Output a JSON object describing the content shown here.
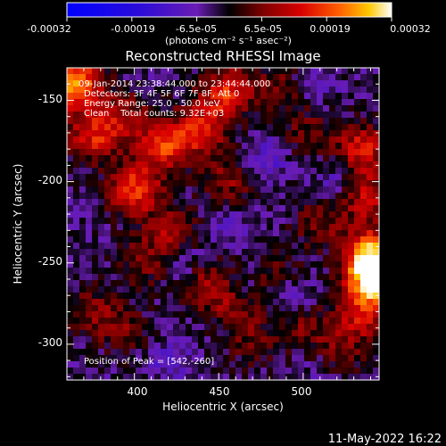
{
  "chart_data": {
    "type": "heatmap",
    "title": "Reconstructed RHESSI Image",
    "xlabel": "Heliocentric X (arcsec)",
    "ylabel": "Heliocentric Y (arcsec)",
    "xlim": [
      360,
      545
    ],
    "ylim": [
      -322,
      -130
    ],
    "x_ticks": [
      400,
      450,
      500
    ],
    "y_ticks": [
      -150,
      -200,
      -250,
      -300
    ],
    "colorbar": {
      "ticks": [
        "-0.00032",
        "-0.00019",
        "-6.5e-05",
        "6.5e-05",
        "0.00019",
        "0.00032"
      ],
      "unit_label": "(photons cm⁻² s⁻¹ asec⁻²)",
      "range": [
        -0.00032,
        0.00032
      ]
    },
    "annotations": {
      "time_range": "09-Jan-2014 23:38:44.000 to 23:44:44.000",
      "detectors": "Detectors: 3F 4F 5F 6F 7F 8F, Att 0",
      "energy": "Energy Range: 25.0 - 50.0 keV",
      "clean": "Clean    Total counts: 9.32E+03",
      "peak": "Position of Peak = [542,-260]"
    },
    "hot_spots": [
      {
        "x": 365,
        "y": -140,
        "v": 0.00028
      },
      {
        "x": 375,
        "y": -172,
        "v": 0.00018
      },
      {
        "x": 400,
        "y": -205,
        "v": 0.00022
      },
      {
        "x": 418,
        "y": -178,
        "v": 0.0002
      },
      {
        "x": 440,
        "y": -168,
        "v": 0.00017
      },
      {
        "x": 455,
        "y": -145,
        "v": 0.00019
      },
      {
        "x": 395,
        "y": -160,
        "v": 0.00012
      },
      {
        "x": 423,
        "y": -232,
        "v": 0.00014
      },
      {
        "x": 455,
        "y": -200,
        "v": 0.00011
      },
      {
        "x": 405,
        "y": -250,
        "v": 9e-05
      },
      {
        "x": 375,
        "y": -280,
        "v": 0.0001
      },
      {
        "x": 395,
        "y": -292,
        "v": 8e-05
      },
      {
        "x": 443,
        "y": -262,
        "v": 0.00013
      },
      {
        "x": 460,
        "y": -275,
        "v": 0.00012
      },
      {
        "x": 485,
        "y": -258,
        "v": 8e-05
      },
      {
        "x": 470,
        "y": -300,
        "v": 7e-05
      },
      {
        "x": 500,
        "y": -288,
        "v": 9e-05
      },
      {
        "x": 520,
        "y": -305,
        "v": 0.0001
      },
      {
        "x": 535,
        "y": -180,
        "v": 0.00018
      },
      {
        "x": 538,
        "y": -210,
        "v": 0.00015
      },
      {
        "x": 510,
        "y": -225,
        "v": 0.0001
      },
      {
        "x": 542,
        "y": -260,
        "v": 0.00032
      },
      {
        "x": 540,
        "y": -245,
        "v": 0.00026
      },
      {
        "x": 535,
        "y": -282,
        "v": 0.00016
      },
      {
        "x": 502,
        "y": -170,
        "v": 8e-05
      },
      {
        "x": 488,
        "y": -142,
        "v": 9e-05
      }
    ],
    "cold_spots": [
      {
        "x": 430,
        "y": -248,
        "v": -9e-05
      },
      {
        "x": 463,
        "y": -265,
        "v": -7e-05
      },
      {
        "x": 495,
        "y": -270,
        "v": -8e-05
      },
      {
        "x": 505,
        "y": -140,
        "v": -6e-05
      },
      {
        "x": 478,
        "y": -185,
        "v": -7e-05
      },
      {
        "x": 455,
        "y": -225,
        "v": -5e-05
      },
      {
        "x": 420,
        "y": -310,
        "v": -6e-05
      },
      {
        "x": 510,
        "y": -313,
        "v": -5e-05
      },
      {
        "x": 520,
        "y": -200,
        "v": -6e-05
      }
    ],
    "background": -3.5e-05
  },
  "footer": {
    "timestamp": "11-May-2022 16:22"
  }
}
